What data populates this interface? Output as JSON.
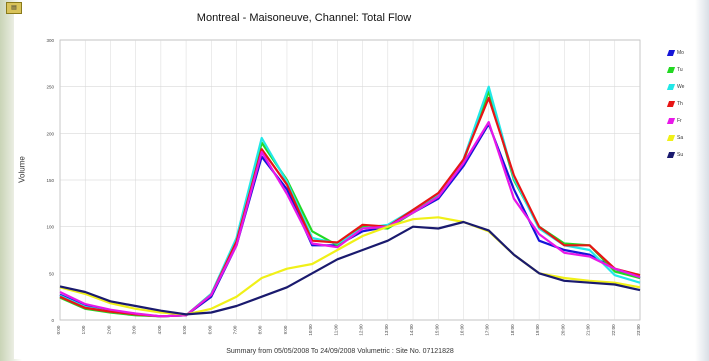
{
  "window": {
    "icon": "chart-window-icon"
  },
  "chart_data": {
    "type": "line",
    "title": "Montreal - Maisoneuve, Channel: Total Flow",
    "ylabel": "Volume",
    "xlabel": "",
    "footer": "Summary from 05/05/2008 To 24/09/2008   Volumetric : Site No. 07121828",
    "ylim": [
      0,
      300
    ],
    "yticks": [
      "0",
      "50",
      "100",
      "150",
      "200",
      "250",
      "300"
    ],
    "categories": [
      "0:00",
      "1:00",
      "2:00",
      "3:00",
      "4:00",
      "5:00",
      "6:00",
      "7:00",
      "8:00",
      "9:00",
      "10:00",
      "11:00",
      "12:00",
      "13:00",
      "14:00",
      "15:00",
      "16:00",
      "17:00",
      "18:00",
      "19:00",
      "20:00",
      "21:00",
      "22:00",
      "23:00"
    ],
    "grid": true,
    "legend_position": "right",
    "series": [
      {
        "name": "Mo",
        "color": "#1515d8",
        "values": [
          27,
          15,
          10,
          6,
          4,
          5,
          25,
          80,
          175,
          140,
          80,
          80,
          95,
          100,
          115,
          130,
          165,
          210,
          140,
          85,
          75,
          70,
          55,
          45
        ]
      },
      {
        "name": "Tu",
        "color": "#22d822",
        "values": [
          24,
          12,
          8,
          5,
          4,
          5,
          28,
          85,
          190,
          150,
          95,
          80,
          100,
          98,
          115,
          133,
          170,
          245,
          150,
          100,
          82,
          80,
          52,
          45
        ]
      },
      {
        "name": "We",
        "color": "#22e8e8",
        "values": [
          26,
          14,
          9,
          6,
          4,
          5,
          28,
          88,
          195,
          148,
          88,
          82,
          98,
          102,
          118,
          135,
          172,
          250,
          152,
          98,
          80,
          75,
          48,
          40
        ]
      },
      {
        "name": "Th",
        "color": "#e81515",
        "values": [
          25,
          13,
          9,
          6,
          4,
          5,
          27,
          84,
          183,
          145,
          85,
          83,
          102,
          100,
          118,
          136,
          172,
          238,
          155,
          100,
          80,
          80,
          55,
          48
        ]
      },
      {
        "name": "Fr",
        "color": "#e818e8",
        "values": [
          30,
          17,
          11,
          7,
          4,
          5,
          27,
          80,
          180,
          135,
          82,
          78,
          98,
          100,
          115,
          132,
          168,
          212,
          130,
          92,
          72,
          68,
          55,
          46
        ]
      },
      {
        "name": "Sa",
        "color": "#f0f018",
        "values": [
          35,
          28,
          18,
          12,
          8,
          6,
          12,
          25,
          45,
          55,
          60,
          75,
          90,
          100,
          108,
          110,
          105,
          95,
          70,
          50,
          45,
          42,
          40,
          35
        ]
      },
      {
        "name": "Su",
        "color": "#1a1a6e",
        "values": [
          36,
          30,
          20,
          15,
          10,
          6,
          8,
          15,
          25,
          35,
          50,
          65,
          75,
          85,
          100,
          98,
          105,
          96,
          70,
          50,
          42,
          40,
          38,
          32
        ]
      }
    ]
  }
}
